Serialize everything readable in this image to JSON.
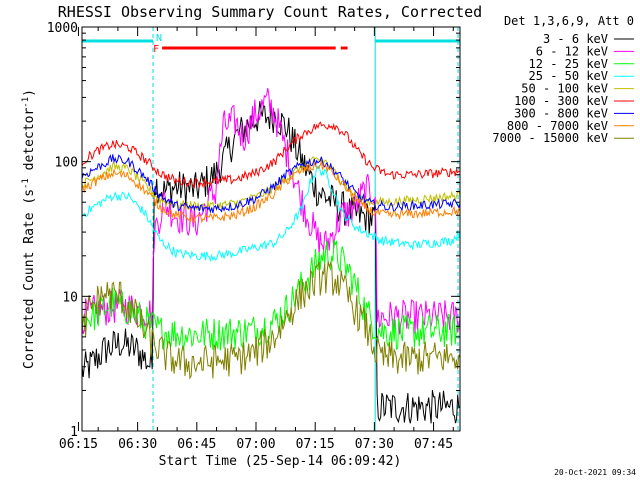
{
  "chart_data": {
    "type": "line",
    "title": "RHESSI Observing Summary Count Rates, Corrected",
    "xlabel": "Start Time (25-Sep-14 06:09:42)",
    "ylabel": "Corrected Count Rate (s-1 detector-1)",
    "y_scale": "log",
    "ylim": [
      1,
      1000
    ],
    "xlim_minutes": [
      6.2,
      102
    ],
    "x_ticks": [
      "06:15",
      "06:30",
      "06:45",
      "07:00",
      "07:15",
      "07:30",
      "07:45"
    ],
    "y_ticks": [
      "1",
      "10",
      "100",
      "1000"
    ],
    "legend_title": "Det 1,3,6,9, Att 0",
    "legend_position": "top-right",
    "timestamp": "20-Oct-2021 09:34",
    "flags": [
      {
        "label": "N",
        "color": "#00e0e0",
        "start_min": 6.2,
        "end_min": 24.2
      },
      {
        "label": "",
        "color": "#00e0e0",
        "start_min": 80.5,
        "end_min": 102
      },
      {
        "label": "F",
        "color": "#ff0000",
        "start_min": 26.5,
        "end_min": 73.5
      }
    ],
    "night_boundaries_min": [
      24.2,
      80.5
    ],
    "series": [
      {
        "name": "3 - 6 keV",
        "color": "#000000",
        "x": [
          6.2,
          8,
          12,
          16,
          20,
          24,
          24.5,
          27,
          30,
          35,
          40,
          45,
          50,
          55,
          58,
          62,
          66,
          68,
          70,
          74,
          76,
          79,
          80.5,
          81,
          90,
          95,
          100,
          102
        ],
        "y": [
          2.8,
          3,
          4,
          4.5,
          4,
          3,
          70,
          60,
          65,
          62,
          80,
          150,
          210,
          220,
          180,
          100,
          60,
          55,
          50,
          42,
          40,
          38,
          38,
          1.5,
          1.5,
          1.5,
          1.5,
          1.5
        ]
      },
      {
        "name": "6 - 12 keV",
        "color": "#ff00ff",
        "x": [
          6.2,
          8,
          12,
          16,
          20,
          24,
          24.5,
          27,
          30,
          35,
          40,
          42,
          45,
          47,
          50,
          53,
          55,
          58,
          62,
          66,
          68,
          70,
          72,
          74,
          76,
          78,
          80.5,
          81,
          90,
          100,
          102
        ],
        "y": [
          7,
          7.5,
          8,
          8.5,
          8,
          7.5,
          30,
          50,
          40,
          35,
          60,
          180,
          200,
          150,
          220,
          280,
          230,
          120,
          50,
          26,
          24,
          30,
          40,
          42,
          50,
          60,
          60,
          7,
          7,
          7,
          7
        ]
      },
      {
        "name": "12 - 25 keV",
        "color": "#00ff00",
        "x": [
          6.2,
          10,
          14,
          18,
          22,
          26,
          30,
          35,
          40,
          45,
          50,
          55,
          58,
          62,
          66,
          68,
          71,
          74,
          78,
          80.5,
          82,
          88,
          95,
          102
        ],
        "y": [
          6.5,
          7.5,
          9,
          8,
          6.5,
          5.5,
          5.3,
          5.2,
          5.3,
          5.4,
          5.6,
          6.5,
          8,
          12,
          18,
          21,
          20,
          15,
          8,
          6,
          5.5,
          5.4,
          5.5,
          5.6
        ]
      },
      {
        "name": "25 - 50 keV",
        "color": "#00ffff",
        "x": [
          6.2,
          10,
          14,
          18,
          22,
          26,
          30,
          35,
          40,
          45,
          50,
          55,
          58,
          62,
          64,
          66,
          68,
          70,
          72,
          76,
          80,
          82,
          90,
          100,
          102
        ],
        "y": [
          40,
          48,
          56,
          55,
          42,
          26,
          21,
          20,
          20,
          21,
          23,
          25,
          30,
          45,
          70,
          90,
          80,
          60,
          42,
          32,
          28,
          26,
          24,
          26,
          30
        ]
      },
      {
        "name": "50 - 100 keV",
        "color": "#c0c000",
        "x": [
          6.2,
          10,
          14,
          18,
          22,
          26,
          30,
          35,
          40,
          45,
          50,
          55,
          58,
          62,
          66,
          68,
          72,
          76,
          80,
          84,
          90,
          96,
          102
        ],
        "y": [
          68,
          78,
          92,
          88,
          68,
          52,
          48,
          47,
          47,
          49,
          54,
          64,
          76,
          92,
          104,
          100,
          72,
          54,
          50,
          50,
          52,
          54,
          56
        ]
      },
      {
        "name": "100 - 300 keV",
        "color": "#ff0000",
        "x": [
          6.2,
          10,
          14,
          18,
          22,
          26,
          30,
          35,
          40,
          45,
          50,
          55,
          58,
          62,
          66,
          70,
          73,
          76,
          80,
          84,
          90,
          96,
          102
        ],
        "y": [
          100,
          120,
          135,
          128,
          105,
          82,
          72,
          70,
          71,
          74,
          82,
          100,
          125,
          160,
          185,
          188,
          160,
          120,
          90,
          80,
          80,
          82,
          85
        ]
      },
      {
        "name": "300 - 800 keV",
        "color": "#0000ff",
        "x": [
          6.2,
          10,
          14,
          18,
          22,
          26,
          30,
          35,
          40,
          45,
          50,
          55,
          58,
          62,
          66,
          68,
          72,
          76,
          80,
          84,
          90,
          96,
          102
        ],
        "y": [
          78,
          90,
          105,
          100,
          78,
          56,
          47,
          45,
          45,
          47,
          53,
          66,
          80,
          96,
          102,
          98,
          76,
          56,
          48,
          46,
          47,
          48,
          49
        ]
      },
      {
        "name": "800 - 7000 keV",
        "color": "#ff8000",
        "x": [
          6.2,
          10,
          14,
          18,
          22,
          26,
          30,
          35,
          40,
          45,
          50,
          55,
          58,
          62,
          66,
          68,
          72,
          76,
          80,
          84,
          90,
          96,
          102
        ],
        "y": [
          62,
          72,
          82,
          78,
          62,
          46,
          40,
          38,
          38,
          40,
          46,
          58,
          72,
          86,
          94,
          92,
          70,
          50,
          42,
          40,
          41,
          42,
          43
        ]
      },
      {
        "name": "7000 - 15000 keV",
        "color": "#808000",
        "x": [
          6.2,
          8,
          12,
          16,
          20,
          24,
          28,
          32,
          36,
          40,
          45,
          50,
          55,
          58,
          62,
          66,
          68,
          71,
          74,
          78,
          80.5,
          82,
          88,
          95,
          102
        ],
        "y": [
          5,
          8,
          10.5,
          10,
          7,
          4.5,
          3.5,
          3.2,
          3.2,
          3.3,
          3.4,
          3.8,
          5,
          7,
          10.5,
          13.5,
          14,
          13,
          9.5,
          6,
          4,
          3.5,
          3.4,
          3.5,
          3.5
        ]
      }
    ]
  }
}
